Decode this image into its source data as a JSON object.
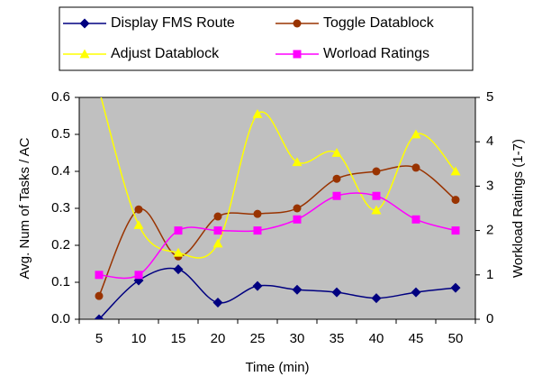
{
  "chart_data": {
    "type": "line",
    "categories": [
      "5",
      "10",
      "15",
      "20",
      "25",
      "30",
      "35",
      "40",
      "45",
      "50"
    ],
    "series": [
      {
        "name": "Display FMS Route",
        "color": "#000080",
        "marker": "diamond",
        "values": [
          0.0,
          0.105,
          0.135,
          0.045,
          0.09,
          0.08,
          0.073,
          0.057,
          0.073,
          0.085
        ]
      },
      {
        "name": "Toggle Datablock",
        "color": "#993300",
        "marker": "circle",
        "values": [
          0.063,
          0.297,
          0.17,
          0.278,
          0.285,
          0.3,
          0.38,
          0.4,
          0.41,
          0.323
        ]
      },
      {
        "name": "Adjust Datablock",
        "color": "#ffff00",
        "marker": "triangle",
        "values": [
          0.62,
          0.255,
          0.18,
          0.205,
          0.555,
          0.425,
          0.45,
          0.295,
          0.5,
          0.4
        ]
      },
      {
        "name": "Worload Ratings",
        "color": "#ff00ff",
        "marker": "square",
        "axis": "y2",
        "values": [
          1.0,
          1.0,
          2.0,
          2.0,
          2.0,
          2.25,
          2.78,
          2.78,
          2.25,
          2.0
        ]
      }
    ],
    "xlabel": "Time (min)",
    "ylabel": "Avg. Num of Tasks / AC",
    "y2label": "Workload Ratings (1-7)",
    "ylim": [
      0,
      0.6
    ],
    "yticks": [
      {
        "value": 0,
        "label": "0.0"
      },
      0.1,
      0.2,
      0.3,
      0.4,
      0.5,
      0.6
    ],
    "y2lim": [
      0,
      5
    ],
    "y2ticks": [
      0,
      1,
      2,
      3,
      4,
      5
    ],
    "background": "#c0c0c0",
    "legend": "top",
    "smooth": true
  }
}
